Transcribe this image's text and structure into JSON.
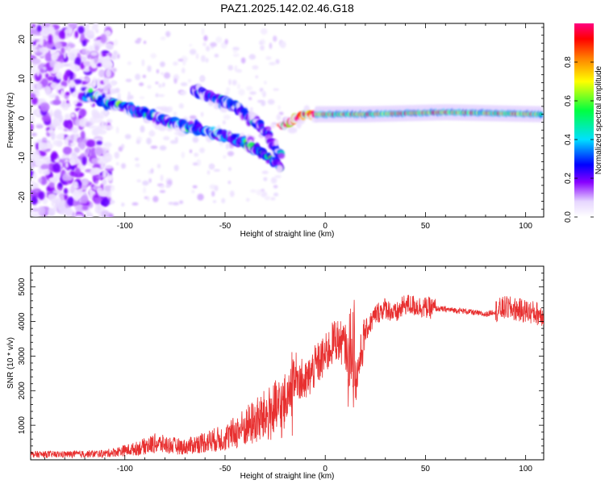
{
  "title": "PAZ1.2025.142.02.46.G18",
  "chart_data": [
    {
      "type": "heatmap",
      "xlabel": "Height of straight line (km)",
      "ylabel": "Frequency (Hz)",
      "xlim": [
        -147,
        109
      ],
      "ylim": [
        -25,
        24
      ],
      "xticks": [
        -100,
        -50,
        0,
        50,
        100
      ],
      "yticks": [
        -20,
        -10,
        0,
        10,
        20
      ],
      "colorbar": {
        "label": "Normalized spectral amplitude",
        "range": [
          0,
          1
        ],
        "ticks": [
          0.0,
          0.2,
          0.4,
          0.6,
          0.8
        ],
        "tick_labels": [
          "0.0",
          "0.2",
          "0.4",
          "0.6",
          "0.8"
        ]
      },
      "ridge_segments": [
        {
          "x": [
            -120,
            -95,
            -70,
            -40,
            -22
          ],
          "y": [
            6,
            2,
            -2,
            -6,
            -12
          ],
          "amplitude": 0.3
        },
        {
          "x": [
            -65,
            -45,
            -30,
            -22
          ],
          "y": [
            7,
            3,
            -3,
            -10
          ],
          "amplitude": 0.25
        },
        {
          "x": [
            -22,
            -10,
            0,
            20,
            60,
            108
          ],
          "y": [
            -2,
            1,
            1,
            1,
            1.5,
            1
          ],
          "amplitude": 0.85
        }
      ]
    },
    {
      "type": "line",
      "xlabel": "Height of straight line (km)",
      "ylabel": "SNR (10 * v/v)",
      "xlim": [
        -147,
        109
      ],
      "ylim": [
        0,
        5600
      ],
      "xticks": [
        -100,
        -50,
        0,
        50,
        100
      ],
      "yticks": [
        1000,
        2000,
        3000,
        4000,
        5000
      ],
      "color": "#e83030",
      "series": [
        {
          "x": [
            -147,
            -130,
            -110,
            -95,
            -85,
            -70,
            -60,
            -50,
            -40,
            -30,
            -20,
            -15,
            -10,
            -5,
            0,
            5,
            10,
            12,
            15,
            20,
            25,
            30,
            35,
            40,
            50,
            60,
            70,
            80,
            90,
            100,
            109
          ],
          "y": [
            150,
            150,
            170,
            300,
            450,
            350,
            500,
            600,
            900,
            1200,
            1500,
            2500,
            2200,
            2700,
            3000,
            3500,
            3300,
            2800,
            2200,
            3700,
            4200,
            4400,
            4200,
            4500,
            4400,
            4350,
            4300,
            4200,
            4400,
            4300,
            4200
          ]
        }
      ]
    }
  ]
}
